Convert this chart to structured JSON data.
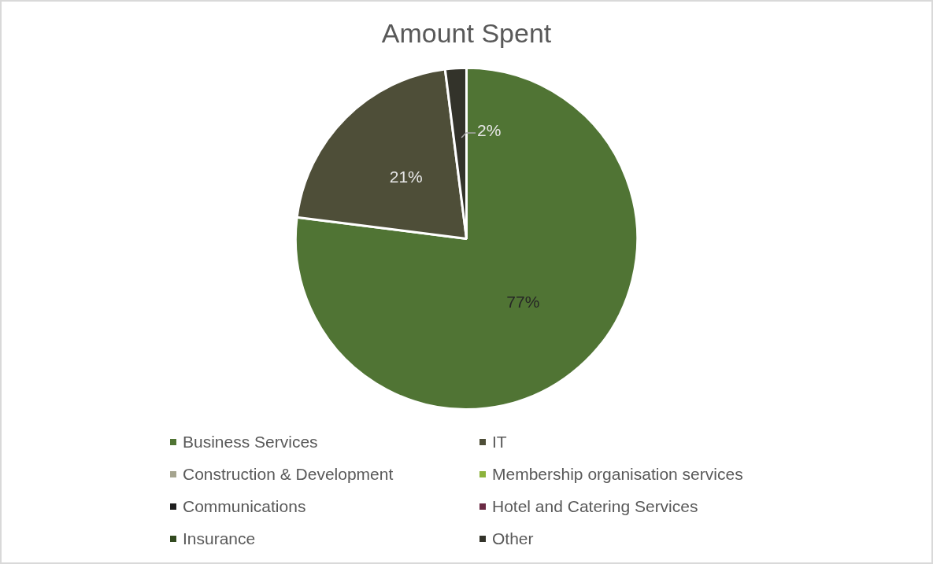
{
  "chart_data": {
    "type": "pie",
    "title": "Amount Spent",
    "categories": [
      "Business Services",
      "IT",
      "Construction & Development",
      "Membership organisation services",
      "Communications",
      "Hotel and Catering Services",
      "Insurance",
      "Other"
    ],
    "values": [
      77,
      21,
      0,
      0,
      0,
      0,
      0,
      2
    ],
    "colors": [
      "#507434",
      "#4e4e38",
      "#a5a48f",
      "#8cb33c",
      "#1e1e1e",
      "#6a2a44",
      "#324a20",
      "#33332a"
    ],
    "value_labels": [
      "77%",
      "21%",
      null,
      null,
      null,
      null,
      null,
      "2%"
    ],
    "legend": "bottom"
  }
}
